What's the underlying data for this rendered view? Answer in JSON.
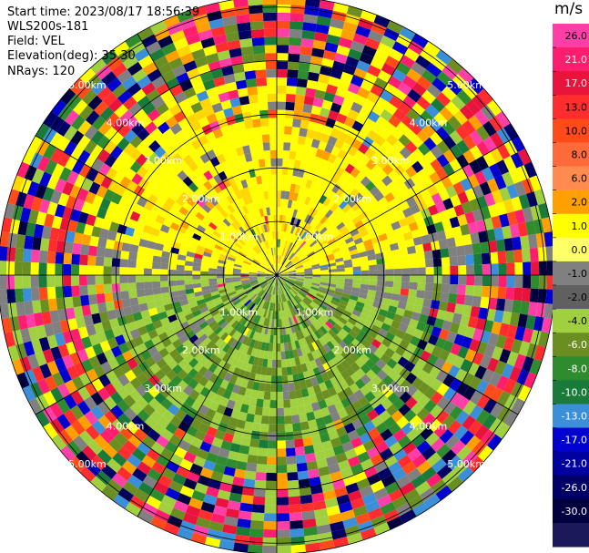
{
  "header": {
    "start_time": "Start time: 2023/08/17 18:56:39",
    "instrument": "WLS200s-181",
    "field": "Field: VEL",
    "elevation": "Elevation(deg): 35.30",
    "nrays": "NRays: 120"
  },
  "colorbar": {
    "unit": "m/s",
    "ticks": [
      "26.0",
      "21.0",
      "17.0",
      "13.0",
      "10.0",
      "8.0",
      "6.0",
      "2.0",
      "1.0",
      "0.0",
      "-1.0",
      "-2.0",
      "-4.0",
      "-6.0",
      "-8.0",
      "-10.0",
      "-13.0",
      "-17.0",
      "-21.0",
      "-26.0",
      "-30.0"
    ],
    "colors": [
      "#ff3ea8",
      "#ff1e6e",
      "#e8143c",
      "#ff2d2d",
      "#ff4a1a",
      "#ff6a3a",
      "#ff8c4e",
      "#ffa000",
      "#ffff00",
      "#ffff66",
      "#808080",
      "#606060",
      "#a0d040",
      "#6b8e23",
      "#2e8b2e",
      "#1a7a3a",
      "#3a8fd8",
      "#0000d0",
      "#0000a0",
      "#000066",
      "#000040",
      "#1a1a5a"
    ]
  },
  "chart_data": {
    "type": "heatmap",
    "projection": "polar PPI",
    "field": "VEL",
    "units": "m/s",
    "range_rings": [
      "1.00km",
      "2.00km",
      "3.00km",
      "4.00km",
      "5.00km"
    ],
    "range_rings_km": [
      1,
      2,
      3,
      4,
      5
    ],
    "azimuth_spokes_deg": [
      0,
      30,
      60,
      90,
      120,
      150,
      180,
      210,
      240,
      270,
      300,
      330
    ],
    "color_limits": [
      -30,
      26
    ],
    "nrays": 120
  }
}
